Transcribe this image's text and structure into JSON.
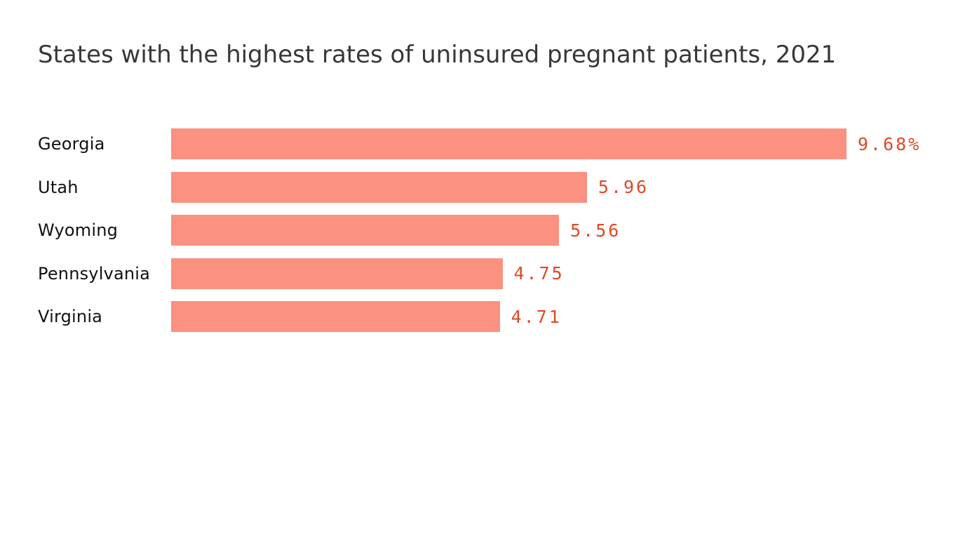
{
  "chart": {
    "title_line1": "States with the highest rates of uninsured pregnant patients,",
    "title_line2": "2021"
  },
  "chart_data": {
    "type": "bar",
    "orientation": "horizontal",
    "title": "States with the highest rates of uninsured pregnant patients, 2021",
    "categories": [
      "Georgia",
      "Utah",
      "Wyoming",
      "Pennsylvania",
      "Virginia"
    ],
    "values": [
      9.68,
      5.96,
      5.56,
      4.75,
      4.71
    ],
    "value_labels": [
      "9.68%",
      "5.96",
      "5.56",
      "4.75",
      "4.71"
    ],
    "unit": "percent",
    "xlabel": "",
    "ylabel": "",
    "xlim": [
      0,
      9.68
    ],
    "grid": false,
    "legend": false,
    "bar_color": "#fb9180",
    "value_label_color": "#dc4a25",
    "title_color": "#38383b",
    "category_label_color": "#111113",
    "background_color": "#ffffff"
  }
}
